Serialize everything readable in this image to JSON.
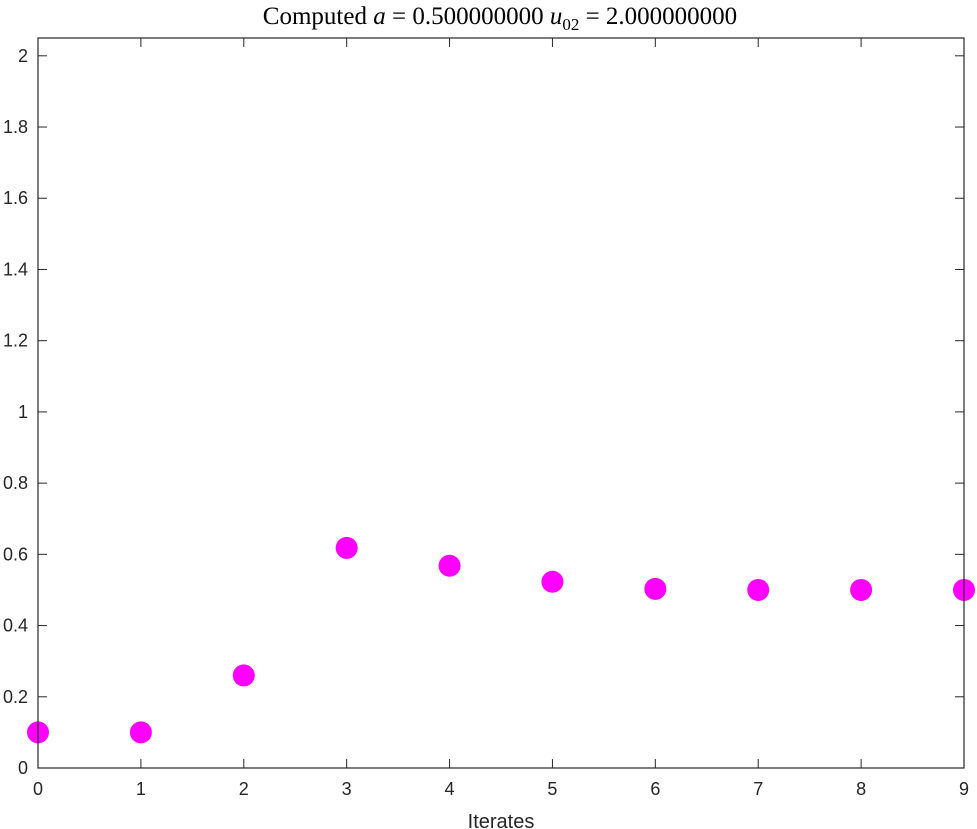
{
  "chart_data": {
    "type": "scatter",
    "title": {
      "prefix": "Computed ",
      "var_a": "a",
      "eq_a": " = 0.500000000 ",
      "var_u": "u",
      "var_u_sub": "02",
      "eq_u": " = 2.000000000"
    },
    "xlabel": "Iterates",
    "ylabel": "",
    "xlim": [
      0,
      9
    ],
    "ylim": [
      0,
      2.05
    ],
    "xticks": [
      0,
      1,
      2,
      3,
      4,
      5,
      6,
      7,
      8,
      9
    ],
    "xtick_labels": [
      "0",
      "1",
      "2",
      "3",
      "4",
      "5",
      "6",
      "7",
      "8",
      "9"
    ],
    "yticks": [
      0,
      0.2,
      0.4,
      0.6,
      0.8,
      1,
      1.2,
      1.4,
      1.6,
      1.8,
      2
    ],
    "ytick_labels": [
      "0",
      "0.2",
      "0.4",
      "0.6",
      "0.8",
      "1",
      "1.2",
      "1.4",
      "1.6",
      "1.8",
      "2"
    ],
    "grid": false,
    "series": [
      {
        "color": "#ff00ff",
        "marker": "filled-circle",
        "x": [
          0,
          1,
          2,
          3,
          4,
          5,
          6,
          7,
          8,
          9
        ],
        "y": [
          0.1,
          0.1,
          0.26,
          0.618,
          0.568,
          0.523,
          0.503,
          0.5,
          0.5,
          0.5
        ]
      }
    ]
  }
}
